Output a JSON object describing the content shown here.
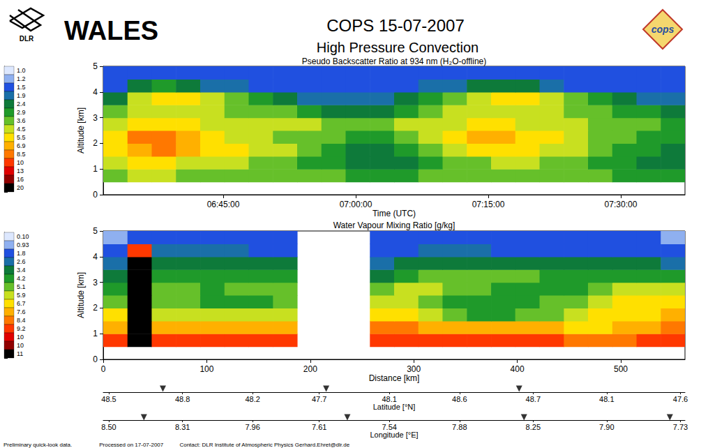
{
  "header": {
    "logo_left": "DLR",
    "instrument": "WALES",
    "campaign": "COPS 15-07-2007",
    "subtitle": "High Pressure Convection",
    "logo_right": "cops"
  },
  "footer": [
    "Preliminary quick-look data.",
    "Processed on 17-07-2007",
    "Contact: DLR Institute of Atmospheric Physics Gerhard.Ehret@dlr.de"
  ],
  "chart_data": [
    {
      "type": "heatmap",
      "title": "Pseudo Backscatter Ratio at 934 nm (H₂O-offline)",
      "xlabel": "Time (UTC)",
      "ylabel": "Altitude [km]",
      "xlim": [
        23485,
        27436
      ],
      "xticks": [
        {
          "value": 24300,
          "label": "06:45:00"
        },
        {
          "value": 25200,
          "label": "07:00:00"
        },
        {
          "value": 26100,
          "label": "07:15:00"
        },
        {
          "value": 27000,
          "label": "07:30:00"
        }
      ],
      "ylim": [
        0,
        5
      ],
      "yticks": [
        0,
        1,
        2,
        3,
        4,
        5
      ],
      "x_edges": [
        23485,
        23649.6,
        23814.3,
        23978.9,
        24143.5,
        24308.1,
        24472.8,
        24637.4,
        24802,
        24966.6,
        25131.3,
        25295.9,
        25460.5,
        25625.1,
        25789.8,
        25954.4,
        26119,
        26283.6,
        26448.3,
        26612.9,
        26777.5,
        26942.1,
        27106.8,
        27271.4,
        27436
      ],
      "y_edges": [
        0,
        0.5,
        1,
        1.5,
        2,
        2.5,
        3,
        3.5,
        4,
        4.5,
        5
      ],
      "cells": [
        [
          null,
          null,
          null,
          null,
          null,
          null,
          null,
          null,
          null,
          null,
          null,
          null,
          null,
          null,
          null,
          null,
          null,
          null,
          null,
          null,
          null,
          null,
          null,
          null
        ],
        [
          3.6,
          4.5,
          4.5,
          3.6,
          3.6,
          3.6,
          3.6,
          3.6,
          3.6,
          3.6,
          2.9,
          2.9,
          2.9,
          3.6,
          3.6,
          3.6,
          3.6,
          3.6,
          3.6,
          3.6,
          3.6,
          2.9,
          2.9,
          2.9
        ],
        [
          4.5,
          5.5,
          5.5,
          4.5,
          4.5,
          4.5,
          3.6,
          3.6,
          2.9,
          2.9,
          2.4,
          2.4,
          2.4,
          2.9,
          3.6,
          3.6,
          4.5,
          4.5,
          3.6,
          3.6,
          2.9,
          2.9,
          2.4,
          2.4
        ],
        [
          5.5,
          6.9,
          8.5,
          6.9,
          5.5,
          5.5,
          4.5,
          4.5,
          3.6,
          2.9,
          2.4,
          2.4,
          2.9,
          3.6,
          4.5,
          5.5,
          5.5,
          5.5,
          4.5,
          4.5,
          3.6,
          2.9,
          2.9,
          2.4
        ],
        [
          5.5,
          8.5,
          8.5,
          6.9,
          5.5,
          4.5,
          4.5,
          3.6,
          3.6,
          3.6,
          2.9,
          2.9,
          3.6,
          4.5,
          5.5,
          6.9,
          6.9,
          5.5,
          5.5,
          4.5,
          3.6,
          3.6,
          2.9,
          2.9
        ],
        [
          4.5,
          5.5,
          5.5,
          5.5,
          4.5,
          4.5,
          4.5,
          4.5,
          4.5,
          3.6,
          3.6,
          3.6,
          4.5,
          4.5,
          4.5,
          5.5,
          5.5,
          4.5,
          4.5,
          4.5,
          3.6,
          3.6,
          3.6,
          2.9
        ],
        [
          3.6,
          4.5,
          4.5,
          4.5,
          4.5,
          3.6,
          3.6,
          3.6,
          2.9,
          2.4,
          2.4,
          2.4,
          2.9,
          3.6,
          4.5,
          4.5,
          4.5,
          4.5,
          4.5,
          3.6,
          3.6,
          2.9,
          2.9,
          2.4
        ],
        [
          2.4,
          4.5,
          5.5,
          5.5,
          4.5,
          3.6,
          2.9,
          2.4,
          1.9,
          1.9,
          1.9,
          1.9,
          2.4,
          2.9,
          3.6,
          4.5,
          5.5,
          5.5,
          4.5,
          3.6,
          2.9,
          2.4,
          1.9,
          1.9
        ],
        [
          1.5,
          2.4,
          2.9,
          2.4,
          1.9,
          1.9,
          1.5,
          1.5,
          1.5,
          1.5,
          1.5,
          1.5,
          1.5,
          1.9,
          1.9,
          2.4,
          2.4,
          2.4,
          1.9,
          1.5,
          1.5,
          1.5,
          1.5,
          1.5
        ],
        [
          1.5,
          1.5,
          1.5,
          1.5,
          1.5,
          1.5,
          1.5,
          1.5,
          1.5,
          1.5,
          1.5,
          1.5,
          1.5,
          1.5,
          1.5,
          1.5,
          1.5,
          1.5,
          1.5,
          1.5,
          1.5,
          1.5,
          1.5,
          1.5
        ]
      ],
      "colorbar": {
        "ticks": [
          {
            "value": 1,
            "label": "1.0"
          },
          1.2,
          1.5,
          1.9,
          2.4,
          2.9,
          3.6,
          4.5,
          5.5,
          6.9,
          8.5,
          10,
          13,
          16,
          20
        ],
        "colors": [
          "#dde8ff",
          "#8fb0f0",
          "#2050e0",
          "#1a6fa8",
          "#0e7a3a",
          "#1f9a2a",
          "#66c02a",
          "#c8e020",
          "#ffe000",
          "#ffb000",
          "#ff7800",
          "#ff3800",
          "#e00000",
          "#900000",
          "#000000"
        ]
      }
    },
    {
      "type": "heatmap",
      "title": "Water Vapour Mixing Ratio [g/kg]",
      "xlabel": "Distance [km]",
      "ylabel": "Altitude [km]",
      "xlim": [
        0,
        562
      ],
      "xticks": [
        0,
        100,
        200,
        300,
        400,
        500
      ],
      "ylim": [
        0,
        5
      ],
      "yticks": [
        0,
        1,
        2,
        3,
        4,
        5
      ],
      "x_edges": [
        0,
        23.4,
        46.8,
        70.3,
        93.7,
        117.1,
        140.5,
        164,
        187.3,
        210.8,
        234.2,
        257.6,
        281,
        304.4,
        327.8,
        351.3,
        374.7,
        398,
        421.5,
        445,
        468.3,
        491.8,
        515.2,
        538.6,
        562
      ],
      "y_edges": [
        0,
        0.5,
        1,
        1.5,
        2,
        2.5,
        3,
        3.5,
        4,
        4.5,
        5
      ],
      "cells": [
        [
          null,
          null,
          null,
          null,
          null,
          null,
          null,
          null,
          null,
          null,
          null,
          null,
          null,
          null,
          null,
          null,
          null,
          null,
          null,
          null,
          null,
          null,
          null,
          null
        ],
        [
          9.2,
          11,
          9.2,
          9.2,
          9.2,
          9.2,
          9.2,
          9.2,
          null,
          null,
          null,
          9.2,
          9.2,
          9.2,
          9.2,
          9.2,
          9.2,
          9.2,
          9.2,
          8.4,
          8.4,
          8.4,
          9.2,
          9.2
        ],
        [
          7.6,
          11,
          7.6,
          7.6,
          7.6,
          7.6,
          7.6,
          7.6,
          null,
          null,
          null,
          8.4,
          8.4,
          7.6,
          7.6,
          7.6,
          7.6,
          7.6,
          7.6,
          6.7,
          6.7,
          7.6,
          7.6,
          8.4
        ],
        [
          6.7,
          11,
          5.9,
          5.9,
          5.9,
          5.9,
          5.9,
          5.9,
          null,
          null,
          null,
          6.7,
          6.7,
          5.9,
          5.1,
          4.2,
          4.2,
          5.1,
          5.1,
          5.9,
          6.7,
          6.7,
          6.7,
          7.6
        ],
        [
          5.1,
          11,
          5.1,
          5.1,
          4.2,
          4.2,
          4.2,
          5.1,
          null,
          null,
          null,
          5.9,
          5.9,
          5.1,
          4.2,
          4.2,
          4.2,
          4.2,
          5.1,
          5.1,
          5.9,
          6.7,
          6.7,
          6.7
        ],
        [
          4.2,
          11,
          5.1,
          5.1,
          4.2,
          5.1,
          5.1,
          5.1,
          null,
          null,
          null,
          5.1,
          5.9,
          5.9,
          5.1,
          5.1,
          4.2,
          4.2,
          4.2,
          4.2,
          5.1,
          5.9,
          5.9,
          5.9
        ],
        [
          3.4,
          11,
          4.2,
          4.2,
          4.2,
          4.2,
          4.2,
          4.2,
          null,
          null,
          null,
          3.4,
          4.2,
          5.1,
          5.1,
          5.1,
          5.1,
          5.1,
          4.2,
          4.2,
          4.2,
          4.2,
          4.2,
          4.2
        ],
        [
          2.6,
          11,
          3.4,
          3.4,
          3.4,
          3.4,
          3.4,
          3.4,
          null,
          null,
          null,
          2.6,
          3.4,
          3.4,
          3.4,
          3.4,
          3.4,
          3.4,
          3.4,
          3.4,
          3.4,
          3.4,
          3.4,
          2.6
        ],
        [
          1.8,
          9.2,
          2.6,
          2.6,
          2.6,
          2.6,
          1.8,
          1.8,
          null,
          null,
          null,
          1.8,
          1.8,
          2.6,
          2.6,
          2.6,
          1.8,
          1.8,
          1.8,
          1.8,
          1.8,
          1.8,
          1.8,
          1.8
        ],
        [
          0.93,
          1.8,
          1.8,
          1.8,
          1.8,
          1.8,
          1.8,
          1.8,
          null,
          null,
          null,
          1.8,
          1.8,
          1.8,
          1.8,
          1.8,
          1.8,
          1.8,
          1.8,
          1.8,
          1.8,
          1.8,
          1.8,
          0.93
        ]
      ],
      "colorbar": {
        "ticks": [
          {
            "value": 0.1,
            "label": "0.10"
          },
          0.93,
          1.8,
          2.6,
          3.4,
          4.2,
          5.1,
          5.9,
          6.7,
          7.6,
          8.4,
          9.2,
          10,
          10,
          11
        ],
        "colors": [
          "#dde8ff",
          "#8fb0f0",
          "#2050e0",
          "#1a6fa8",
          "#0e7a3a",
          "#1f9a2a",
          "#66c02a",
          "#c8e020",
          "#ffe000",
          "#ffb000",
          "#ff7800",
          "#ff3800",
          "#e00000",
          "#900000",
          "#000000"
        ]
      },
      "extra_axes": [
        {
          "title": "Latitude [°N]",
          "ticks": [
            {
              "value": 5.4,
              "label": "48.5"
            },
            {
              "value": 76.6,
              "label": "48.8"
            },
            {
              "value": 144.3,
              "label": "48.2"
            },
            {
              "value": 208.7,
              "label": "47.7"
            },
            {
              "value": 276.4,
              "label": "48.1"
            },
            {
              "value": 344.2,
              "label": "48.6"
            },
            {
              "value": 415.3,
              "label": "48.7"
            },
            {
              "value": 486.4,
              "label": "48.1"
            },
            {
              "value": 557.6,
              "label": "47.6"
            }
          ],
          "markers": [
            57.6,
            215.4,
            401.8
          ]
        },
        {
          "title": "Longitude [°E]",
          "ticks": [
            {
              "value": 5.4,
              "label": "8.50"
            },
            {
              "value": 76.6,
              "label": "8.31"
            },
            {
              "value": 144.3,
              "label": "7.96"
            },
            {
              "value": 208.7,
              "label": "7.61"
            },
            {
              "value": 276.4,
              "label": "7.54"
            },
            {
              "value": 344.2,
              "label": "7.88"
            },
            {
              "value": 415.3,
              "label": "8.25"
            },
            {
              "value": 486.4,
              "label": "7.90"
            },
            {
              "value": 557.6,
              "label": "7.73"
            }
          ],
          "markers": [
            39.3,
            235.8,
            406.5,
            547.4
          ]
        }
      ]
    }
  ]
}
